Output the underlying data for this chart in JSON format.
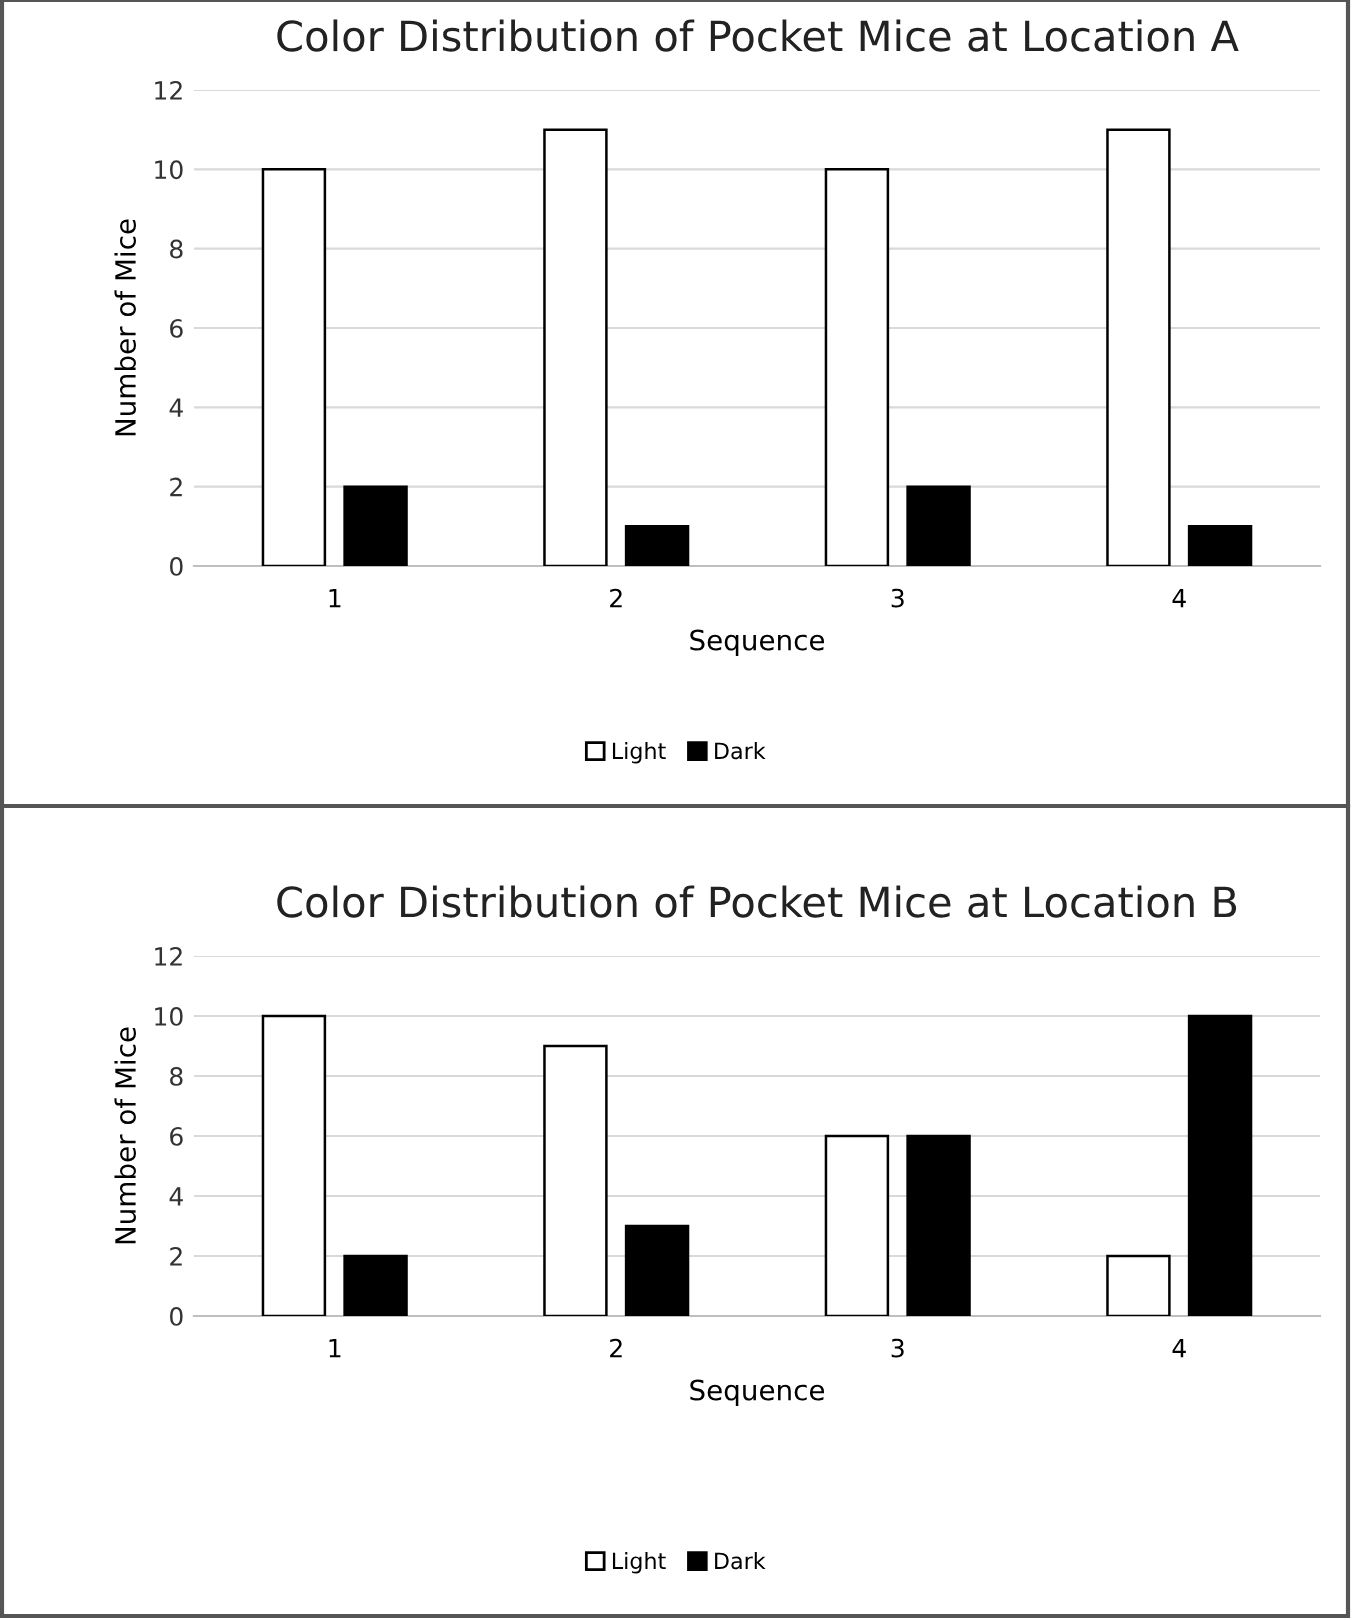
{
  "chart_data": [
    {
      "type": "bar",
      "title": "Color Distribution of Pocket Mice at Location A",
      "xlabel": "Sequence",
      "ylabel": "Number of Mice",
      "categories": [
        "1",
        "2",
        "3",
        "4"
      ],
      "series": [
        {
          "name": "Light",
          "color": "#ffffff",
          "values": [
            10,
            11,
            10,
            11
          ]
        },
        {
          "name": "Dark",
          "color": "#000000",
          "values": [
            2,
            1,
            2,
            1
          ]
        }
      ],
      "ylim": [
        0,
        12
      ],
      "yticks": [
        0,
        2,
        4,
        6,
        8,
        10,
        12
      ],
      "grid": "y",
      "legend": "bottom"
    },
    {
      "type": "bar",
      "title": "Color Distribution of Pocket Mice at Location B",
      "xlabel": "Sequence",
      "ylabel": "Number of Mice",
      "categories": [
        "1",
        "2",
        "3",
        "4"
      ],
      "series": [
        {
          "name": "Light",
          "color": "#ffffff",
          "values": [
            10,
            9,
            6,
            2
          ]
        },
        {
          "name": "Dark",
          "color": "#000000",
          "values": [
            2,
            3,
            6,
            10
          ]
        }
      ],
      "ylim": [
        0,
        12
      ],
      "yticks": [
        0,
        2,
        4,
        6,
        8,
        10,
        12
      ],
      "grid": "y",
      "legend": "bottom"
    }
  ]
}
